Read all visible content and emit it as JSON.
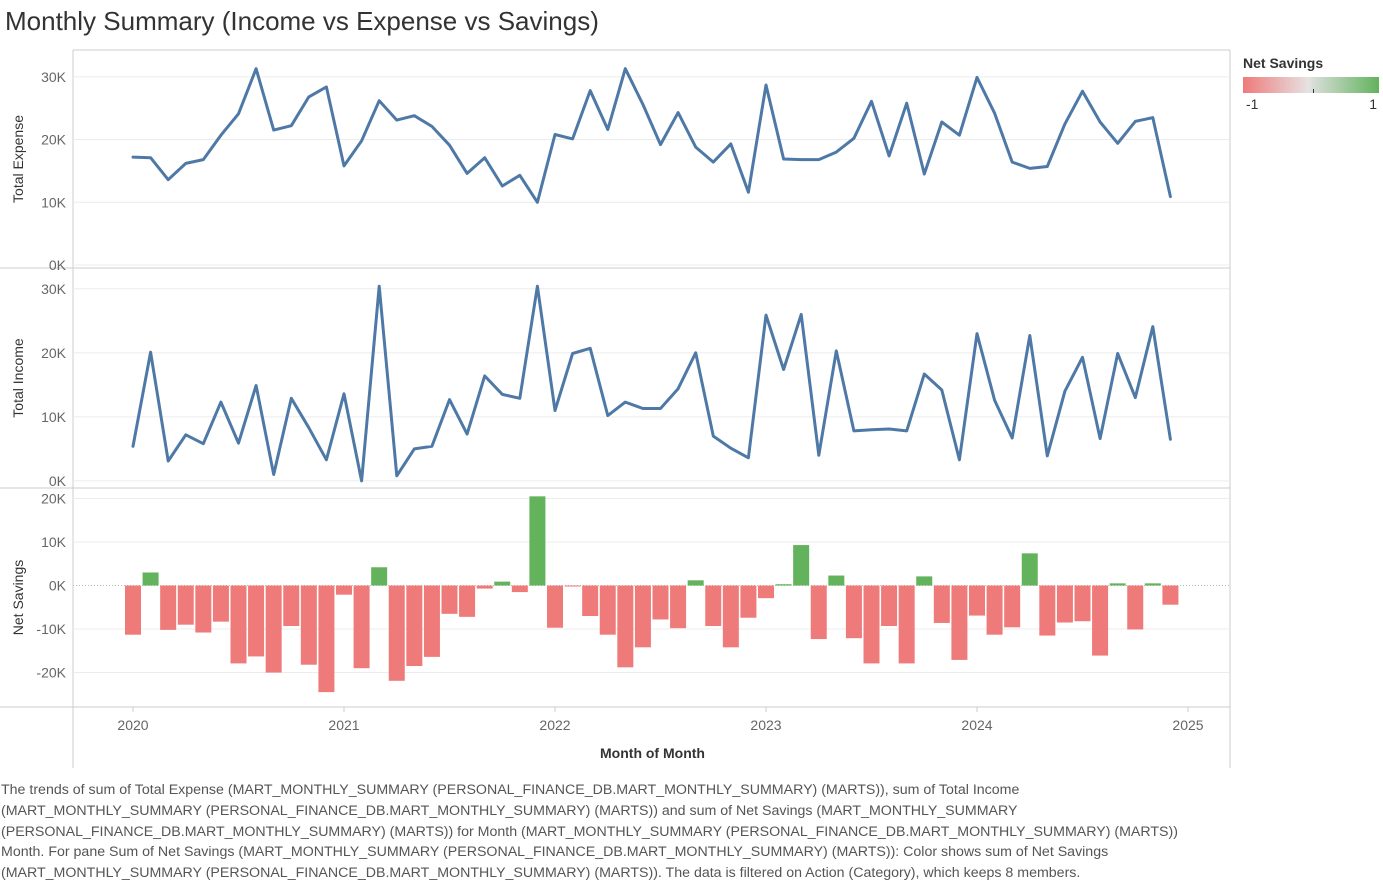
{
  "title": "Monthly Summary (Income vs Expense vs Savings)",
  "legend": {
    "title": "Net Savings",
    "min_label": "-1",
    "max_label": "1"
  },
  "colors": {
    "line": "#4e79a7",
    "positive": "#62b35c",
    "negative": "#ef7a7a",
    "grid": "#ececec",
    "axis": "#cccccc"
  },
  "caption": "The trends of sum of Total Expense (MART_MONTHLY_SUMMARY (PERSONAL_FINANCE_DB.MART_MONTHLY_SUMMARY) (MARTS)), sum of Total Income (MART_MONTHLY_SUMMARY (PERSONAL_FINANCE_DB.MART_MONTHLY_SUMMARY) (MARTS)) and sum of Net Savings (MART_MONTHLY_SUMMARY (PERSONAL_FINANCE_DB.MART_MONTHLY_SUMMARY) (MARTS)) for Month (MART_MONTHLY_SUMMARY (PERSONAL_FINANCE_DB.MART_MONTHLY_SUMMARY) (MARTS)) Month.  For pane Sum of Net Savings (MART_MONTHLY_SUMMARY (PERSONAL_FINANCE_DB.MART_MONTHLY_SUMMARY) (MARTS)):  Color shows sum of Net Savings (MART_MONTHLY_SUMMARY (PERSONAL_FINANCE_DB.MART_MONTHLY_SUMMARY) (MARTS)). The data is filtered on Action (Category), which keeps 8 members.",
  "chart_data": {
    "type": "line",
    "title": "Monthly Summary (Income vs Expense vs Savings)",
    "xlabel": "Month of Month",
    "x_ticks": [
      "2020",
      "2021",
      "2022",
      "2023",
      "2024",
      "2025"
    ],
    "x": [
      "2020-01",
      "2020-02",
      "2020-03",
      "2020-04",
      "2020-05",
      "2020-06",
      "2020-07",
      "2020-08",
      "2020-09",
      "2020-10",
      "2020-11",
      "2020-12",
      "2021-01",
      "2021-02",
      "2021-03",
      "2021-04",
      "2021-05",
      "2021-06",
      "2021-07",
      "2021-08",
      "2021-09",
      "2021-10",
      "2021-11",
      "2021-12",
      "2022-01",
      "2022-02",
      "2022-03",
      "2022-04",
      "2022-05",
      "2022-06",
      "2022-07",
      "2022-08",
      "2022-09",
      "2022-10",
      "2022-11",
      "2022-12",
      "2023-01",
      "2023-02",
      "2023-03",
      "2023-04",
      "2023-05",
      "2023-06",
      "2023-07",
      "2023-08",
      "2023-09",
      "2023-10",
      "2023-11",
      "2023-12",
      "2024-01",
      "2024-02",
      "2024-03",
      "2024-04",
      "2024-05",
      "2024-06",
      "2024-07",
      "2024-08",
      "2024-09",
      "2024-10",
      "2024-11",
      "2024-12"
    ],
    "panes": [
      {
        "type": "line",
        "ylabel": "Total Expense",
        "ylim": [
          0,
          33000
        ],
        "y_ticks": [
          0,
          10000,
          20000,
          30000
        ],
        "y_tick_labels": [
          "0K",
          "10K",
          "20K",
          "30K"
        ],
        "values": [
          17200,
          17100,
          13600,
          16200,
          16800,
          20700,
          24100,
          31300,
          21500,
          22200,
          26800,
          28400,
          15800,
          19800,
          26200,
          23100,
          23800,
          22100,
          19100,
          14600,
          17100,
          12600,
          14300,
          10000,
          20800,
          20100,
          27800,
          21600,
          31300,
          25600,
          19200,
          24300,
          18800,
          16400,
          19300,
          11600,
          28700,
          16900,
          16800,
          16800,
          18000,
          20200,
          26100,
          17400,
          25800,
          14500,
          22800,
          20700,
          29900,
          24200,
          16400,
          15400,
          15700,
          22500,
          27700,
          22800,
          19400,
          22900,
          23500,
          10900
        ]
      },
      {
        "type": "line",
        "ylabel": "Total Income",
        "ylim": [
          -800,
          32000
        ],
        "y_ticks": [
          0,
          10000,
          20000,
          30000
        ],
        "y_tick_labels": [
          "0K",
          "10K",
          "20K",
          "30K"
        ],
        "values": [
          5400,
          20100,
          3100,
          7200,
          5800,
          12300,
          5900,
          14900,
          1000,
          12900,
          8300,
          3300,
          13600,
          0,
          30400,
          800,
          5000,
          5400,
          12700,
          7300,
          16400,
          13500,
          12900,
          30400,
          11000,
          19900,
          20700,
          10200,
          12300,
          11300,
          11300,
          14400,
          20000,
          7000,
          5100,
          3600,
          25900,
          17400,
          26000,
          4000,
          20300,
          7800,
          8000,
          8100,
          7800,
          16700,
          14200,
          3300,
          23000,
          12600,
          6700,
          22700,
          3900,
          14000,
          19300,
          6600,
          19900,
          13000,
          24100,
          6500
        ]
      },
      {
        "type": "bar",
        "ylabel": "Net Savings",
        "ylim": [
          -27000,
          21500
        ],
        "y_ticks": [
          -20000,
          -10000,
          0,
          10000,
          20000
        ],
        "y_tick_labels": [
          "-20K",
          "-10K",
          "0K",
          "10K",
          "20K"
        ],
        "values": [
          -11300,
          3000,
          -10200,
          -9000,
          -10800,
          -8300,
          -17900,
          -16300,
          -20000,
          -9300,
          -18200,
          -24500,
          -2100,
          -19000,
          4200,
          -21900,
          -18500,
          -16400,
          -6500,
          -7200,
          -700,
          900,
          -1500,
          20500,
          -9700,
          -200,
          -7000,
          -11300,
          -18800,
          -14200,
          -7800,
          -9800,
          1200,
          -9300,
          -14200,
          -7400,
          -2900,
          300,
          9300,
          -12300,
          2300,
          -12100,
          -17900,
          -9300,
          -17900,
          2100,
          -8600,
          -17100,
          -6900,
          -11300,
          -9600,
          7400,
          -11500,
          -8500,
          -8200,
          -16100,
          500,
          -10100,
          500,
          -4400
        ]
      }
    ],
    "grid": true,
    "legend_position": "top-right"
  }
}
